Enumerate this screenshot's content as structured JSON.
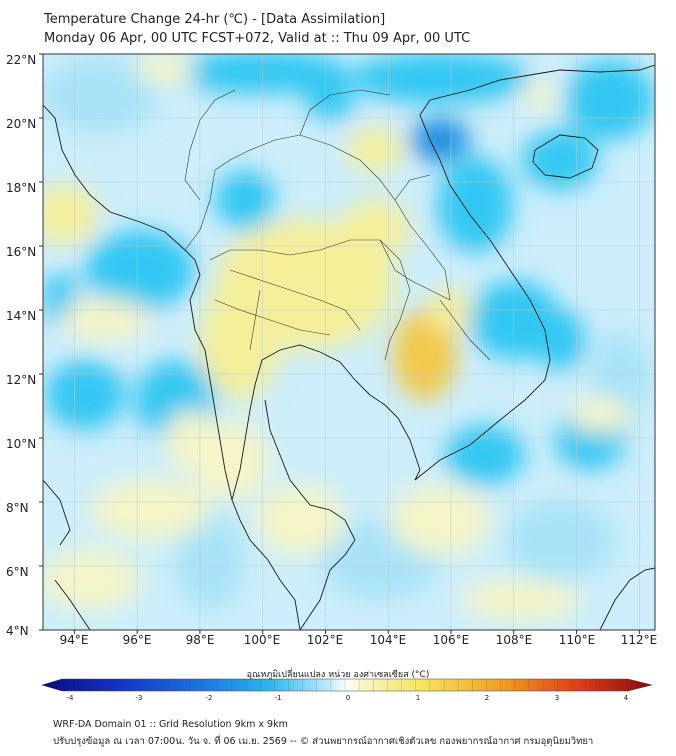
{
  "title": {
    "line1": "Temperature Change 24-hr (℃) - [Data Assimilation]",
    "line2": "Monday 06 Apr, 00 UTC FCST+072, Valid at :: Thu 09 Apr, 00 UTC"
  },
  "map": {
    "lat_labels": [
      "22°N",
      "20°N",
      "18°N",
      "16°N",
      "14°N",
      "12°N",
      "10°N",
      "8°N",
      "6°N",
      "4°N"
    ],
    "lon_labels": [
      "94°E",
      "96°E",
      "98°E",
      "100°E",
      "102°E",
      "104°E",
      "106°E",
      "108°E",
      "110°E",
      "112°E"
    ],
    "extent": {
      "lon_min": 93,
      "lon_max": 112.5,
      "lat_min": 4,
      "lat_max": 22
    },
    "colors": {
      "base": "#cdeefa",
      "light_blue": "#a8e3f7",
      "blue": "#33c7f2",
      "deep_blue": "#1a8fe0",
      "pale_yellow": "#f5f5c8",
      "yellow": "#f5ef9a",
      "orange": "#f2c94a",
      "coast": "#1a1a1a",
      "grid": "#b9c9d4"
    }
  },
  "colorbar": {
    "label": "อุณหภูมิเปลี่ยนแปลง หน่วย องศาเซลเซียส (°C)",
    "ticks": [
      "-4",
      "-3",
      "-2",
      "-1",
      "0",
      "1",
      "2",
      "3",
      "4"
    ],
    "min": -4,
    "max": 4
  },
  "footer": {
    "line1": "WRF-DA Domain 01 :: Grid Resolution 9km x 9km",
    "line2": "ปรับปรุงข้อมูล ณ เวลา 07:00น. วัน จ. ที่ 06 เม.ย. 2569 -- © ส่วนพยากรณ์อากาศเชิงตัวเลข กองพยากรณ์อากาศ กรมอุตุนิยมวิทยา"
  }
}
